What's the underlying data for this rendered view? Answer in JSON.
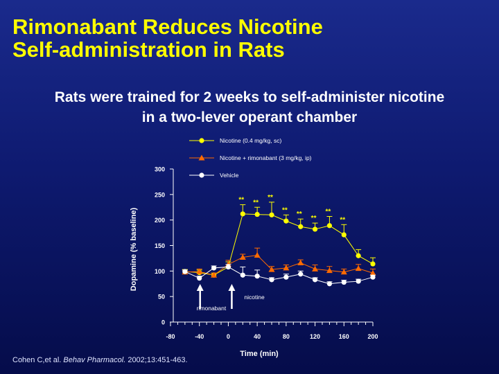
{
  "slide": {
    "title_line1": "Rimonabant Reduces Nicotine",
    "title_line2": "Self-administration in Rats",
    "subtitle_line1": "Rats were trained for 2 weeks to self-administer nicotine",
    "subtitle_line2": "in a two-lever operant chamber",
    "citation_authors": "Cohen C,et al. ",
    "citation_journal": "Behav Pharmacol.",
    "citation_details": " 2002;13:451-463."
  },
  "colors": {
    "nicotine": "#ffff00",
    "rimonabant": "#ff6a00",
    "vehicle": "#ffffff",
    "axis": "#ffffff"
  },
  "chart_data": {
    "type": "line",
    "xlabel": "Time (min)",
    "ylabel": "Dopamine (% baseline)",
    "xlim": [
      -80,
      200
    ],
    "ylim": [
      0,
      300
    ],
    "xticks": [
      -80,
      -40,
      0,
      40,
      80,
      120,
      160,
      200
    ],
    "yticks": [
      0,
      50,
      100,
      150,
      200,
      250,
      300
    ],
    "legend_position": "top",
    "x": [
      -60,
      -40,
      -20,
      0,
      20,
      40,
      60,
      80,
      100,
      120,
      140,
      160,
      180,
      200
    ],
    "series": [
      {
        "name": "Nicotine (0.4 mg/kg, sc)",
        "color": "#ffff00",
        "marker": "circle",
        "values": [
          99,
          97,
          92,
          108,
          212,
          211,
          210,
          198,
          187,
          182,
          189,
          171,
          130,
          114
        ],
        "errors": [
          4,
          5,
          4,
          10,
          18,
          14,
          25,
          12,
          15,
          12,
          18,
          20,
          12,
          12
        ],
        "significant": [
          false,
          false,
          false,
          false,
          true,
          true,
          true,
          true,
          true,
          true,
          true,
          true,
          false,
          false
        ]
      },
      {
        "name": "Nicotine + rimonabant (3 mg/kg, ip)",
        "color": "#ff6a00",
        "marker": "triangle",
        "values": [
          98,
          99,
          92,
          113,
          127,
          131,
          103,
          106,
          116,
          104,
          101,
          98,
          105,
          96
        ],
        "errors": [
          4,
          5,
          4,
          8,
          6,
          14,
          6,
          6,
          6,
          8,
          8,
          6,
          8,
          8
        ],
        "significant": [
          false,
          false,
          false,
          false,
          false,
          false,
          false,
          false,
          false,
          false,
          false,
          false,
          false,
          false
        ]
      },
      {
        "name": "Vehicle",
        "color": "#ffffff",
        "marker": "circle",
        "values": [
          99,
          86,
          106,
          108,
          92,
          90,
          83,
          88,
          94,
          83,
          75,
          78,
          80,
          88
        ],
        "errors": [
          3,
          4,
          4,
          5,
          16,
          12,
          4,
          6,
          6,
          4,
          4,
          4,
          4,
          4
        ],
        "significant": [
          false,
          false,
          false,
          false,
          false,
          false,
          false,
          false,
          false,
          false,
          false,
          false,
          false,
          false
        ]
      }
    ],
    "significance_label": "**",
    "annotations": [
      {
        "text": "rimonabant",
        "x": -40
      },
      {
        "text": "nicotine",
        "x": 0
      }
    ]
  }
}
